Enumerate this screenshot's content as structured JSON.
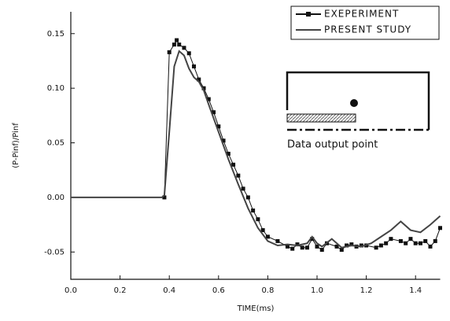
{
  "chart_data": {
    "type": "line",
    "x_label": "TIME(ms)",
    "y_label": "(P-Pinf)/Pinf",
    "annotation": "Data output point",
    "xlim": [
      0,
      1.5
    ],
    "ylim": [
      -0.075,
      0.17
    ],
    "xticks": [
      {
        "value": 0,
        "label": "0.0"
      },
      0.2,
      0.4,
      0.6,
      0.8,
      {
        "value": 1,
        "label": "1.0"
      },
      1.2,
      1.4
    ],
    "yticks": [
      -0.05,
      {
        "value": 0,
        "label": "0.00"
      },
      0.05,
      {
        "value": 0.1,
        "label": "0.10"
      },
      0.15
    ],
    "legend": "upper right",
    "series": [
      {
        "name": "EXEPERIMENT",
        "color": "#111111",
        "marker": "square",
        "x": [
          0.38,
          0.4,
          0.42,
          0.43,
          0.44,
          0.46,
          0.48,
          0.5,
          0.52,
          0.54,
          0.56,
          0.58,
          0.6,
          0.62,
          0.64,
          0.66,
          0.68,
          0.7,
          0.72,
          0.74,
          0.76,
          0.78,
          0.8,
          0.84,
          0.88,
          0.9,
          0.92,
          0.94,
          0.96,
          0.98,
          1.0,
          1.02,
          1.04,
          1.08,
          1.1,
          1.12,
          1.14,
          1.16,
          1.18,
          1.2,
          1.24,
          1.26,
          1.28,
          1.3,
          1.34,
          1.36,
          1.38,
          1.4,
          1.42,
          1.44,
          1.46,
          1.48,
          1.5
        ],
        "values": [
          0.0,
          0.133,
          0.14,
          0.144,
          0.14,
          0.137,
          0.132,
          0.12,
          0.108,
          0.1,
          0.09,
          0.078,
          0.065,
          0.052,
          0.04,
          0.03,
          0.02,
          0.008,
          0.0,
          -0.012,
          -0.02,
          -0.03,
          -0.036,
          -0.04,
          -0.045,
          -0.047,
          -0.043,
          -0.046,
          -0.046,
          -0.038,
          -0.045,
          -0.048,
          -0.042,
          -0.045,
          -0.048,
          -0.044,
          -0.043,
          -0.045,
          -0.044,
          -0.044,
          -0.046,
          -0.044,
          -0.042,
          -0.038,
          -0.04,
          -0.042,
          -0.038,
          -0.042,
          -0.042,
          -0.04,
          -0.045,
          -0.04,
          -0.028
        ]
      },
      {
        "name": "PRESENT STUDY",
        "color": "#444444",
        "marker": "none",
        "x": [
          0,
          0.37,
          0.38,
          0.4,
          0.42,
          0.44,
          0.46,
          0.48,
          0.5,
          0.52,
          0.54,
          0.56,
          0.6,
          0.64,
          0.68,
          0.72,
          0.76,
          0.8,
          0.84,
          0.88,
          0.92,
          0.96,
          0.98,
          1.0,
          1.02,
          1.06,
          1.1,
          1.14,
          1.18,
          1.22,
          1.26,
          1.3,
          1.34,
          1.38,
          1.42,
          1.46,
          1.5
        ],
        "values": [
          0,
          0,
          0.002,
          0.06,
          0.12,
          0.134,
          0.13,
          0.118,
          0.11,
          0.106,
          0.098,
          0.085,
          0.06,
          0.035,
          0.012,
          -0.01,
          -0.028,
          -0.04,
          -0.044,
          -0.043,
          -0.044,
          -0.042,
          -0.036,
          -0.042,
          -0.045,
          -0.038,
          -0.046,
          -0.044,
          -0.045,
          -0.042,
          -0.036,
          -0.03,
          -0.022,
          -0.03,
          -0.032,
          -0.025,
          -0.017
        ]
      }
    ]
  }
}
